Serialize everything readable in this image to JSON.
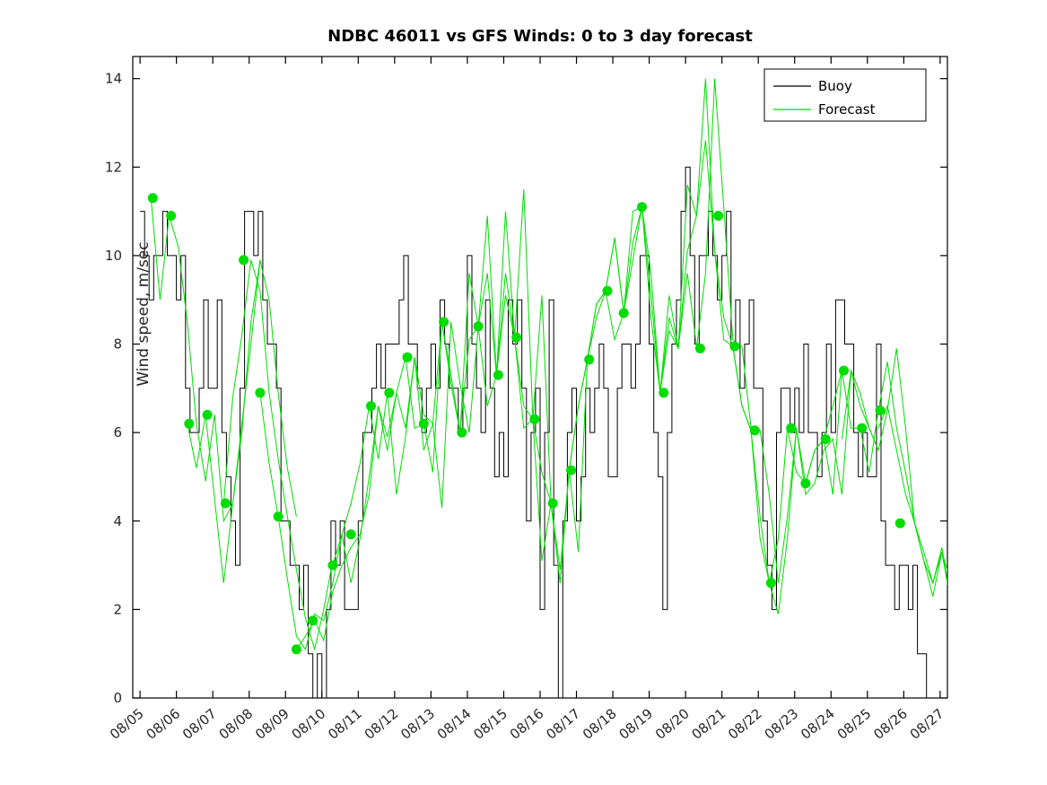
{
  "figure": {
    "background": "#ffffff",
    "axes_box_color": "#000000",
    "tick_label_color": "#262626"
  },
  "legend": {
    "position": "top-right-inside"
  },
  "chart_data": {
    "type": "line",
    "title": "NDBC 46011 vs GFS Winds: 0 to 3 day forecast",
    "xlabel": "",
    "ylabel": "Wind speed, m/sec",
    "grid": false,
    "xlim_days": [
      -0.2,
      22.2
    ],
    "ylim": [
      0,
      14.5
    ],
    "y_ticks": [
      0,
      2,
      4,
      6,
      8,
      10,
      12,
      14
    ],
    "x_tick_labels": [
      "08/05",
      "08/06",
      "08/07",
      "08/08",
      "08/09",
      "08/10",
      "08/11",
      "08/12",
      "08/13",
      "08/14",
      "08/15",
      "08/16",
      "08/17",
      "08/18",
      "08/19",
      "08/20",
      "08/21",
      "08/22",
      "08/23",
      "08/24",
      "08/25",
      "08/26",
      "08/27"
    ],
    "x_tick_angle_deg": 40,
    "series": [
      {
        "name": "Buoy",
        "color": "#000000",
        "style": "step"
      },
      {
        "name": "Forecast",
        "color": "#00dd00",
        "style": "line-with-start-markers"
      }
    ],
    "buoy": {
      "t_start_day": 0,
      "t_step_day": 0.125,
      "values": [
        11,
        10,
        9,
        10,
        10,
        11,
        10,
        10,
        9,
        10,
        7,
        6,
        6,
        7,
        9,
        7,
        7,
        9,
        6,
        5,
        4,
        3,
        7,
        11,
        11,
        10,
        11,
        9,
        8,
        8,
        7,
        4,
        4,
        3,
        3,
        2,
        3,
        1,
        0,
        1,
        0,
        2,
        4,
        3,
        4,
        2,
        2,
        2,
        4,
        6,
        6,
        7,
        8,
        7,
        8,
        8,
        8,
        9,
        10,
        8,
        8,
        7,
        6,
        7,
        8,
        7,
        9,
        8,
        7,
        7,
        6,
        7,
        10,
        8,
        7,
        6,
        9,
        7,
        5,
        6,
        5,
        9,
        8,
        9,
        7,
        4,
        6,
        7,
        2,
        6,
        9,
        3,
        0,
        4,
        6,
        7,
        4,
        5,
        7,
        6,
        7,
        8,
        7,
        5,
        5,
        7,
        8,
        8,
        7,
        8,
        10,
        10,
        8,
        6,
        5,
        2,
        6,
        8,
        9,
        11,
        12,
        10,
        8,
        10,
        10,
        11,
        10,
        9,
        10,
        11,
        8,
        9,
        7,
        8,
        9,
        7,
        7,
        4,
        3,
        2,
        6,
        7,
        7,
        6,
        7,
        6,
        8,
        6,
        6,
        5,
        6,
        8,
        6,
        9,
        9,
        8,
        8,
        6,
        5,
        6,
        5,
        5,
        8,
        4,
        3,
        3,
        2,
        3,
        3,
        2,
        3,
        1,
        1,
        0,
        0,
        0
      ]
    },
    "forecasts": {
      "t_step_day": 0.25,
      "trajectories": [
        {
          "t_start": 0.3,
          "values": [
            11.3,
            9.0,
            10.9,
            10.2,
            8.5,
            6.2,
            4.9,
            6.4,
            4.0,
            4.4,
            6.0,
            8.5,
            9.9
          ]
        },
        {
          "t_start": 1.3,
          "values": [
            6.2,
            5.2,
            6.4,
            4.5,
            2.6,
            4.4,
            6.2,
            8.0,
            9.9,
            9.0,
            6.9,
            5.2,
            4.1
          ]
        },
        {
          "t_start": 2.3,
          "values": [
            4.4,
            6.8,
            8.2,
            9.9,
            9.2,
            6.9,
            5.4,
            4.1,
            2.9,
            1.8,
            1.1,
            2.0,
            3.1
          ]
        },
        {
          "t_start": 3.3,
          "values": [
            6.9,
            5.3,
            4.1,
            2.7,
            1.4,
            1.1,
            1.9,
            1.75,
            2.6,
            3.7,
            4.4,
            5.3,
            6.6
          ]
        },
        {
          "t_start": 4.3,
          "values": [
            1.1,
            1.4,
            1.75,
            1.3,
            2.4,
            3.0,
            3.4,
            3.7,
            4.6,
            6.6,
            5.6,
            6.9,
            7.7
          ]
        },
        {
          "t_start": 5.3,
          "values": [
            3.0,
            3.7,
            2.6,
            3.6,
            5.0,
            6.6,
            5.9,
            6.9,
            6.1,
            7.7,
            5.6,
            6.2,
            8.5
          ]
        },
        {
          "t_start": 6.3,
          "values": [
            6.6,
            5.4,
            6.9,
            4.6,
            5.9,
            7.7,
            6.4,
            6.2,
            4.3,
            8.5,
            7.1,
            6.0,
            8.4
          ]
        },
        {
          "t_start": 7.3,
          "values": [
            7.7,
            6.1,
            6.2,
            5.1,
            8.5,
            7.3,
            6.0,
            9.6,
            8.4,
            6.6,
            7.3,
            9.1,
            8.15
          ]
        },
        {
          "t_start": 8.3,
          "values": [
            8.5,
            7.1,
            6.0,
            8.1,
            8.4,
            10.9,
            7.3,
            9.6,
            8.15,
            6.6,
            6.3,
            5.1,
            4.4
          ]
        },
        {
          "t_start": 9.3,
          "values": [
            8.4,
            9.6,
            7.3,
            11.0,
            8.15,
            6.1,
            6.3,
            3.1,
            4.4,
            2.6,
            5.15,
            6.6,
            7.65
          ]
        },
        {
          "t_start": 10.3,
          "values": [
            8.15,
            11.5,
            6.3,
            9.1,
            4.4,
            2.6,
            5.15,
            3.3,
            7.65,
            8.6,
            9.2,
            8.1,
            8.7
          ]
        },
        {
          "t_start": 11.3,
          "values": [
            4.4,
            2.9,
            5.15,
            6.6,
            7.65,
            8.9,
            9.2,
            10.4,
            8.7,
            9.9,
            11.1,
            8.6,
            6.9
          ]
        },
        {
          "t_start": 12.3,
          "values": [
            7.65,
            8.9,
            9.2,
            10.4,
            8.7,
            11.0,
            11.1,
            9.1,
            6.9,
            8.3,
            7.9,
            9.6,
            7.95
          ]
        },
        {
          "t_start": 13.3,
          "values": [
            8.7,
            10.3,
            11.1,
            9.6,
            6.9,
            9.1,
            7.9,
            11.6,
            10.9,
            14.0,
            10.1,
            8.6,
            7.95
          ]
        },
        {
          "t_start": 14.3,
          "values": [
            6.9,
            8.6,
            7.9,
            10.1,
            10.9,
            12.6,
            10.1,
            8.1,
            7.95,
            6.6,
            6.05,
            4.1,
            2.6
          ]
        },
        {
          "t_start": 15.3,
          "values": [
            7.9,
            9.6,
            14.0,
            11.1,
            8.1,
            7.95,
            6.1,
            6.05,
            4.6,
            2.6,
            4.1,
            6.1,
            4.85
          ]
        },
        {
          "t_start": 16.3,
          "values": [
            7.95,
            6.6,
            6.05,
            3.6,
            2.6,
            3.6,
            6.1,
            5.1,
            4.85,
            5.6,
            5.85,
            6.6,
            7.4
          ]
        },
        {
          "t_start": 17.3,
          "values": [
            2.6,
            1.9,
            3.6,
            6.1,
            4.6,
            4.85,
            5.6,
            5.85,
            4.6,
            7.4,
            6.6,
            6.1,
            5.6
          ]
        },
        {
          "t_start": 18.3,
          "values": [
            4.85,
            5.6,
            5.85,
            4.6,
            7.4,
            6.1,
            6.1,
            5.1,
            6.5,
            7.6,
            6.1,
            5.1,
            3.95
          ]
        },
        {
          "t_start": 19.3,
          "values": [
            5.85,
            7.4,
            6.9,
            6.1,
            5.6,
            6.5,
            7.9,
            6.1,
            3.95,
            3.1,
            2.6,
            3.3,
            2.1
          ]
        },
        {
          "t_start": 20.3,
          "values": [
            6.1,
            6.6,
            5.6,
            4.6,
            3.95,
            3.1,
            2.3,
            3.3,
            2.6,
            1.9,
            3.1,
            2.6,
            1.8
          ]
        },
        {
          "t_start": 21.3,
          "values": [
            3.95,
            3.3,
            2.6,
            3.4,
            2.1,
            2.9,
            1.9
          ]
        }
      ],
      "start_markers": [
        [
          0.35,
          11.3
        ],
        [
          0.85,
          10.9
        ],
        [
          1.35,
          6.2
        ],
        [
          1.85,
          6.4
        ],
        [
          2.35,
          4.4
        ],
        [
          2.85,
          9.9
        ],
        [
          3.3,
          6.9
        ],
        [
          3.8,
          4.1
        ],
        [
          4.3,
          1.1
        ],
        [
          4.75,
          1.75
        ],
        [
          5.3,
          3.0
        ],
        [
          5.8,
          3.7
        ],
        [
          6.35,
          6.6
        ],
        [
          6.85,
          6.9
        ],
        [
          7.35,
          7.7
        ],
        [
          7.8,
          6.2
        ],
        [
          8.35,
          8.5
        ],
        [
          8.85,
          6.0
        ],
        [
          9.3,
          8.4
        ],
        [
          9.85,
          7.3
        ],
        [
          10.35,
          8.15
        ],
        [
          10.85,
          6.3
        ],
        [
          11.35,
          4.4
        ],
        [
          11.85,
          5.15
        ],
        [
          12.35,
          7.65
        ],
        [
          12.85,
          9.2
        ],
        [
          13.3,
          8.7
        ],
        [
          13.8,
          11.1
        ],
        [
          14.4,
          6.9
        ],
        [
          15.4,
          7.9
        ],
        [
          15.9,
          10.9
        ],
        [
          16.35,
          7.95
        ],
        [
          16.9,
          6.05
        ],
        [
          17.35,
          2.6
        ],
        [
          17.9,
          6.1
        ],
        [
          18.3,
          4.85
        ],
        [
          18.85,
          5.85
        ],
        [
          19.35,
          7.4
        ],
        [
          19.85,
          6.1
        ],
        [
          20.35,
          6.5
        ],
        [
          20.9,
          3.95
        ]
      ]
    },
    "legend_entries": [
      {
        "label": "Buoy",
        "color": "#000000"
      },
      {
        "label": "Forecast",
        "color": "#00dd00"
      }
    ]
  }
}
